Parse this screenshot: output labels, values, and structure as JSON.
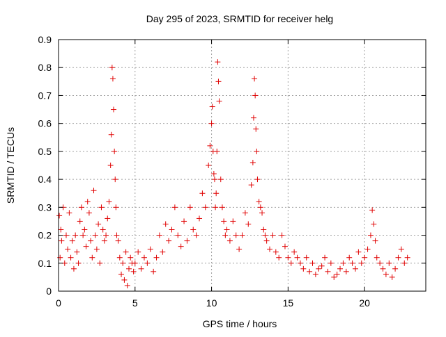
{
  "chart_data": {
    "type": "scatter",
    "title": "Day 295 of 2023, SRMTID for receiver helg",
    "xlabel": "GPS time / hours",
    "ylabel": "SRMTID / TECUs",
    "xlim": [
      0,
      24
    ],
    "ylim": [
      0,
      0.9
    ],
    "xticks": [
      "0",
      "5",
      "10",
      "15",
      "20"
    ],
    "yticks": [
      "0",
      "0.1",
      "0.2",
      "0.3",
      "0.4",
      "0.5",
      "0.6",
      "0.7",
      "0.8",
      "0.9"
    ],
    "grid": true,
    "marker": "plus",
    "color": "#e00000",
    "series": [
      {
        "name": "SRMTID",
        "x": [
          0.05,
          0.1,
          0.15,
          0.2,
          0.3,
          0.4,
          0.5,
          0.6,
          0.7,
          0.8,
          0.9,
          1.0,
          1.1,
          1.2,
          1.3,
          1.4,
          1.5,
          1.6,
          1.7,
          1.8,
          1.9,
          2.0,
          2.1,
          2.2,
          2.3,
          2.4,
          2.5,
          2.6,
          2.7,
          2.8,
          2.9,
          3.0,
          3.1,
          3.2,
          3.3,
          3.4,
          3.45,
          3.5,
          3.55,
          3.6,
          3.65,
          3.7,
          3.75,
          3.8,
          3.9,
          4.0,
          4.1,
          4.2,
          4.3,
          4.4,
          4.5,
          4.6,
          4.7,
          4.8,
          4.9,
          5.0,
          5.2,
          5.4,
          5.6,
          5.8,
          6.0,
          6.2,
          6.4,
          6.6,
          6.8,
          7.0,
          7.2,
          7.4,
          7.6,
          7.8,
          8.0,
          8.2,
          8.4,
          8.6,
          8.8,
          9.0,
          9.2,
          9.4,
          9.6,
          9.8,
          9.9,
          10.0,
          10.05,
          10.1,
          10.15,
          10.2,
          10.25,
          10.3,
          10.35,
          10.4,
          10.45,
          10.5,
          10.6,
          10.7,
          10.8,
          10.9,
          11.0,
          11.2,
          11.4,
          11.6,
          11.8,
          12.0,
          12.2,
          12.4,
          12.6,
          12.7,
          12.75,
          12.8,
          12.85,
          12.9,
          12.95,
          13.0,
          13.1,
          13.2,
          13.3,
          13.4,
          13.5,
          13.6,
          13.8,
          14.0,
          14.2,
          14.4,
          14.6,
          14.8,
          15.0,
          15.2,
          15.4,
          15.6,
          15.8,
          16.0,
          16.2,
          16.4,
          16.6,
          16.8,
          17.0,
          17.2,
          17.4,
          17.6,
          17.8,
          18.0,
          18.2,
          18.4,
          18.6,
          18.8,
          19.0,
          19.2,
          19.4,
          19.6,
          19.8,
          20.0,
          20.2,
          20.4,
          20.5,
          20.6,
          20.7,
          20.8,
          21.0,
          21.2,
          21.4,
          21.6,
          21.8,
          22.0,
          22.2,
          22.4,
          22.6,
          22.8
        ],
        "y": [
          0.27,
          0.12,
          0.22,
          0.18,
          0.3,
          0.1,
          0.2,
          0.15,
          0.28,
          0.12,
          0.18,
          0.08,
          0.2,
          0.14,
          0.1,
          0.25,
          0.3,
          0.2,
          0.22,
          0.16,
          0.32,
          0.28,
          0.18,
          0.12,
          0.36,
          0.2,
          0.15,
          0.24,
          0.1,
          0.3,
          0.22,
          0.18,
          0.2,
          0.26,
          0.32,
          0.45,
          0.56,
          0.8,
          0.76,
          0.65,
          0.5,
          0.4,
          0.3,
          0.2,
          0.18,
          0.12,
          0.06,
          0.1,
          0.04,
          0.14,
          0.02,
          0.08,
          0.12,
          0.1,
          0.07,
          0.1,
          0.14,
          0.08,
          0.12,
          0.1,
          0.15,
          0.07,
          0.12,
          0.2,
          0.14,
          0.24,
          0.18,
          0.22,
          0.3,
          0.2,
          0.16,
          0.25,
          0.18,
          0.3,
          0.22,
          0.2,
          0.26,
          0.35,
          0.3,
          0.45,
          0.52,
          0.6,
          0.66,
          0.5,
          0.42,
          0.4,
          0.3,
          0.35,
          0.5,
          0.82,
          0.75,
          0.68,
          0.4,
          0.3,
          0.25,
          0.2,
          0.22,
          0.18,
          0.25,
          0.2,
          0.15,
          0.2,
          0.28,
          0.24,
          0.38,
          0.46,
          0.62,
          0.76,
          0.7,
          0.58,
          0.5,
          0.4,
          0.32,
          0.3,
          0.28,
          0.22,
          0.2,
          0.18,
          0.15,
          0.2,
          0.14,
          0.12,
          0.2,
          0.16,
          0.12,
          0.1,
          0.14,
          0.12,
          0.1,
          0.08,
          0.12,
          0.07,
          0.1,
          0.06,
          0.08,
          0.09,
          0.12,
          0.07,
          0.1,
          0.05,
          0.06,
          0.08,
          0.1,
          0.07,
          0.12,
          0.1,
          0.08,
          0.14,
          0.1,
          0.12,
          0.15,
          0.2,
          0.29,
          0.24,
          0.18,
          0.12,
          0.1,
          0.08,
          0.06,
          0.1,
          0.05,
          0.08,
          0.12,
          0.15,
          0.1,
          0.12
        ]
      }
    ]
  }
}
